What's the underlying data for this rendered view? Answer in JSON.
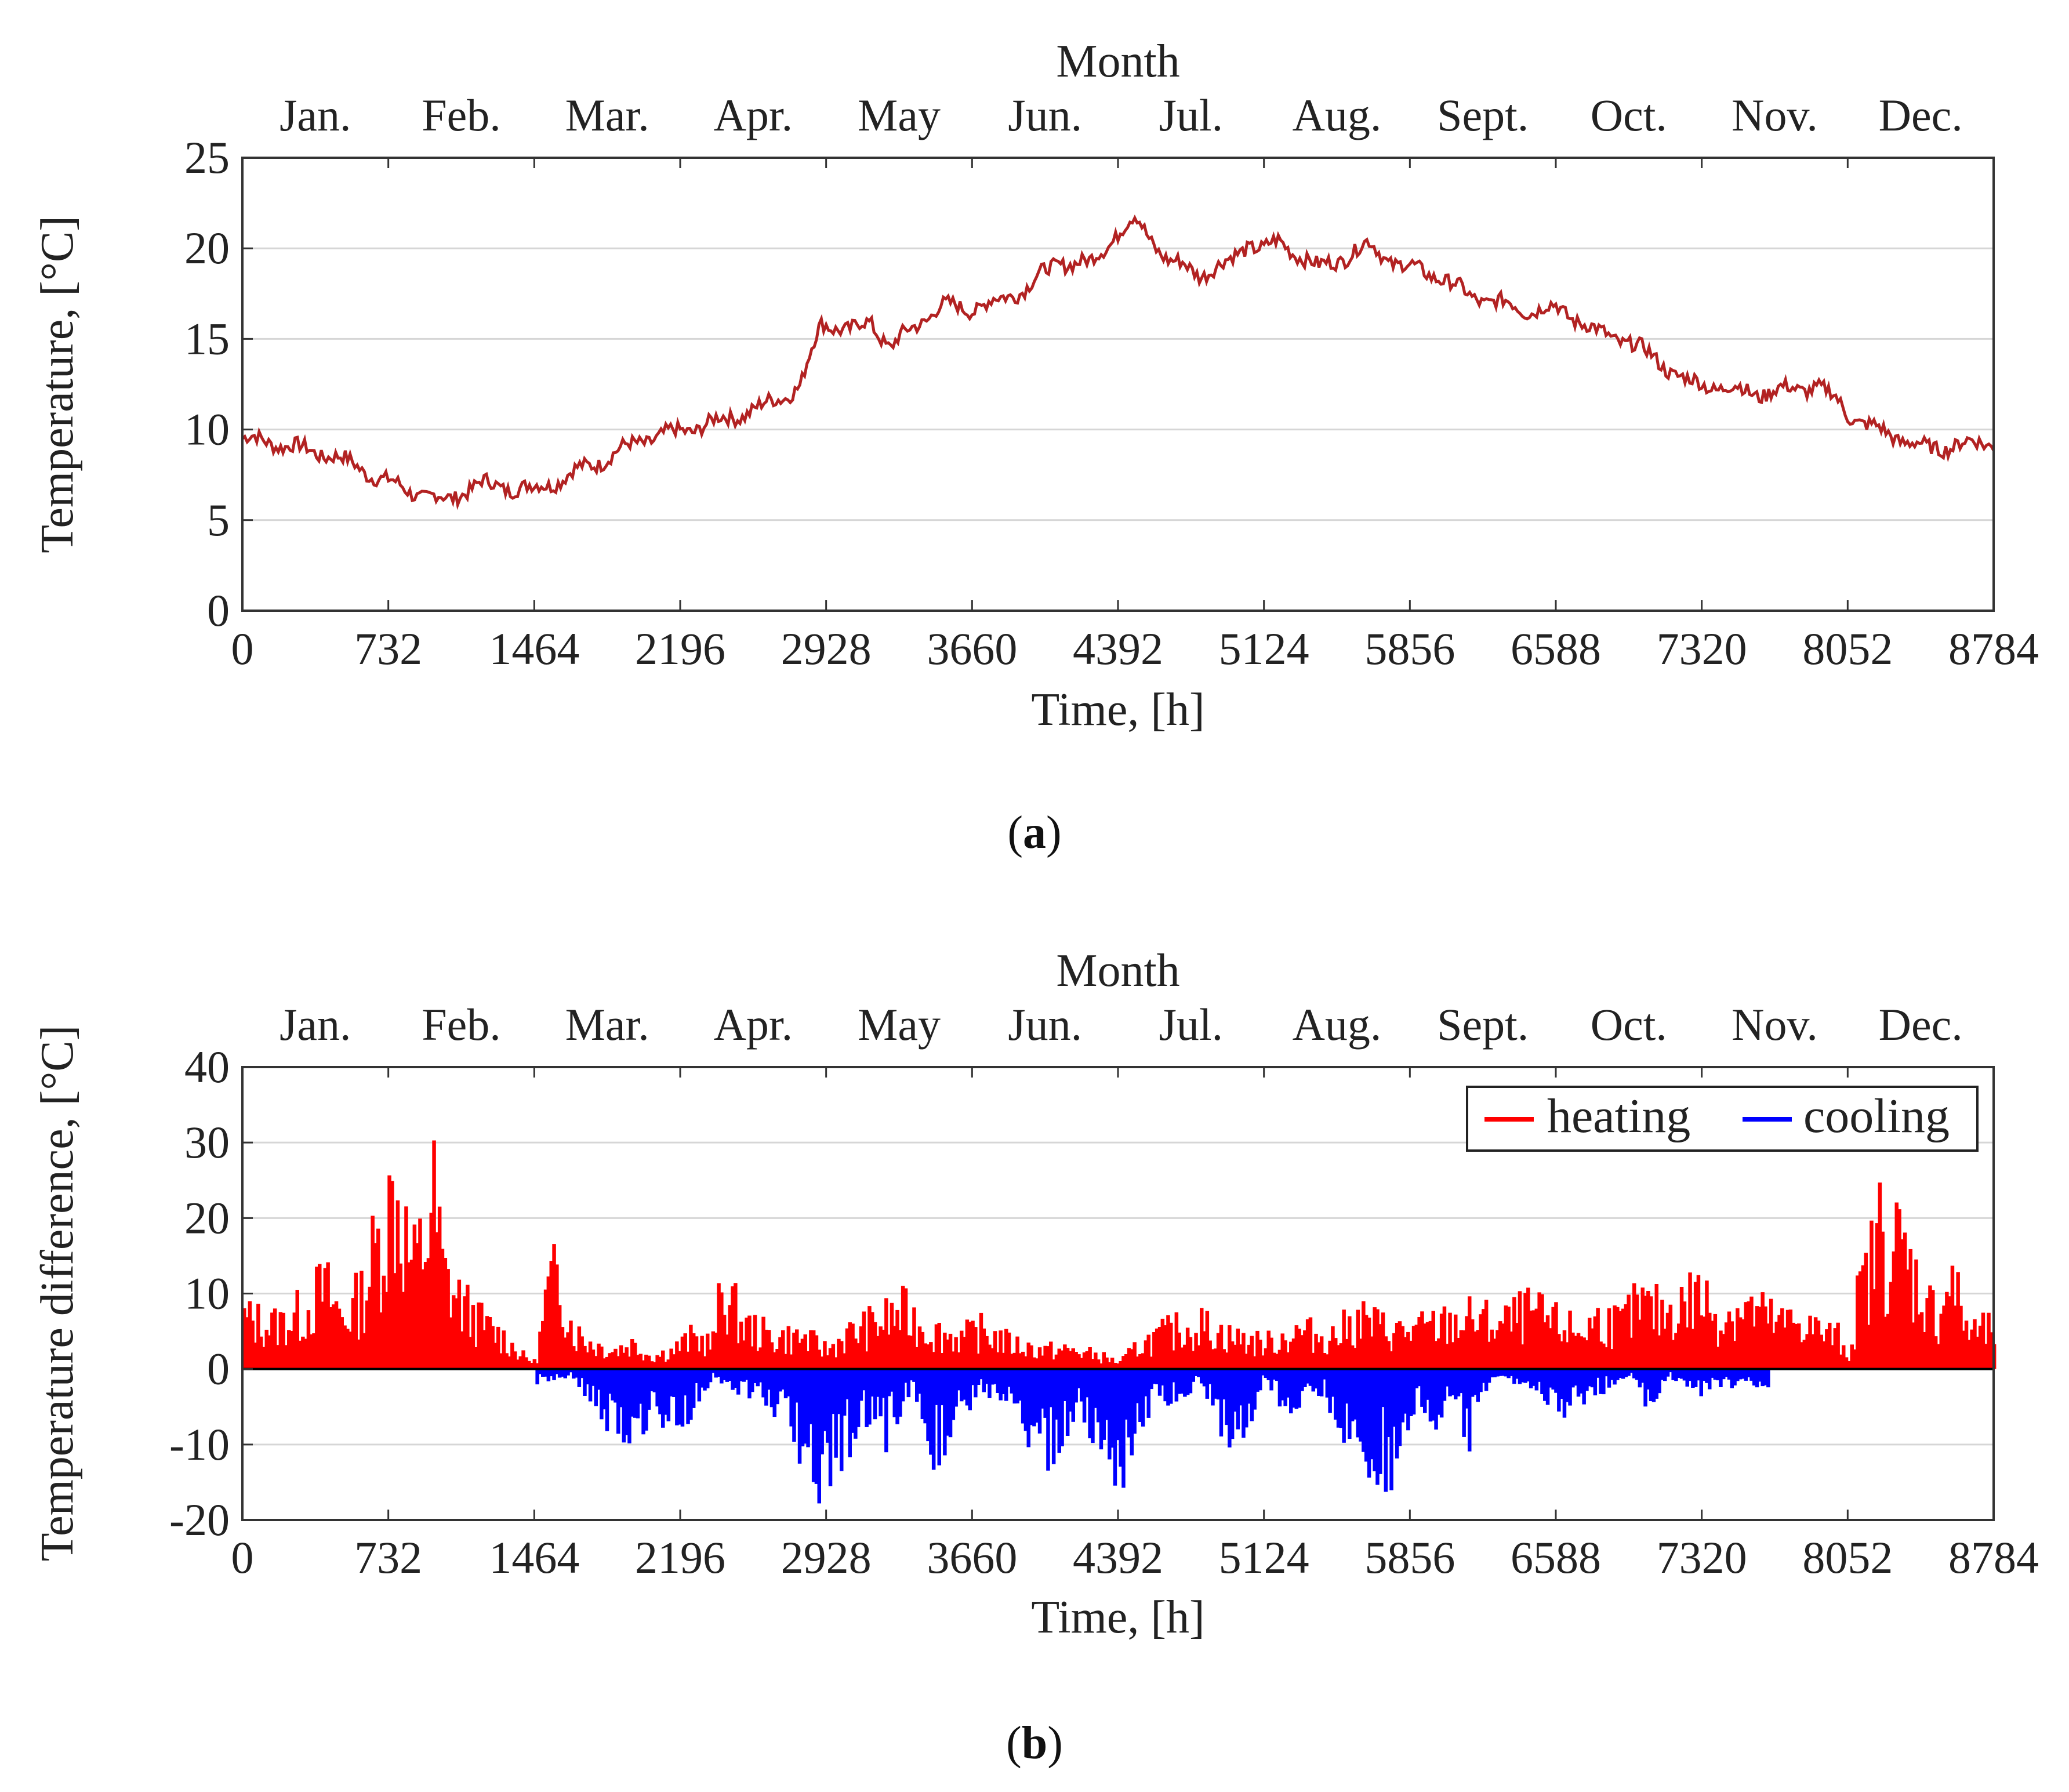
{
  "chart_data": [
    {
      "type": "line",
      "panel_label": "a",
      "top_axis_title": "Month",
      "months": [
        "Jan.",
        "Feb.",
        "Mar.",
        "Apr.",
        "May",
        "Jun.",
        "Jul.",
        "Aug.",
        "Sept.",
        "Oct.",
        "Nov.",
        "Dec."
      ],
      "xlabel": "Time, [h]",
      "ylabel": "Temperature, [°C]",
      "xlim": [
        0,
        8784
      ],
      "ylim": [
        0,
        25
      ],
      "xticks": [
        0,
        732,
        1464,
        2196,
        2928,
        3660,
        4392,
        5124,
        5856,
        6588,
        7320,
        8052,
        8784
      ],
      "yticks": [
        0,
        5,
        10,
        15,
        20,
        25
      ],
      "grid": true,
      "series": [
        {
          "name": "temperature",
          "color": "#b22222",
          "x": [
            0,
            150,
            300,
            450,
            600,
            750,
            900,
            1000,
            1050,
            1100,
            1200,
            1350,
            1464,
            1600,
            1800,
            2000,
            2196,
            2400,
            2600,
            2800,
            2900,
            2928,
            3050,
            3150,
            3250,
            3350,
            3500,
            3660,
            3800,
            3950,
            4100,
            4250,
            4392,
            4480,
            4550,
            4650,
            4800,
            4950,
            5050,
            5124,
            5200,
            5300,
            5400,
            5500,
            5650,
            5750,
            5856,
            6000,
            6150,
            6300,
            6450,
            6588,
            6700,
            6800,
            6950,
            7100,
            7250,
            7320,
            7450,
            7600,
            7750,
            7900,
            8000,
            8052,
            8150,
            8300,
            8450,
            8550,
            8650,
            8784
          ],
          "values": [
            9.5,
            9.3,
            8.9,
            8.6,
            7.8,
            7.0,
            6.4,
            6.1,
            6.2,
            6.6,
            7.0,
            6.8,
            6.7,
            7.3,
            8.3,
            9.4,
            9.9,
            10.5,
            11.2,
            12.4,
            15.8,
            15.9,
            15.4,
            16.0,
            14.5,
            15.5,
            16.8,
            16.7,
            17.1,
            18.0,
            19.3,
            19.1,
            20.9,
            21.6,
            20.6,
            19.3,
            18.6,
            19.2,
            20.3,
            20.0,
            20.3,
            19.7,
            18.9,
            19.4,
            20.2,
            19.4,
            18.9,
            18.5,
            17.4,
            17.0,
            16.6,
            16.7,
            16.1,
            15.3,
            14.9,
            13.8,
            12.6,
            12.5,
            12.3,
            12.0,
            12.2,
            12.4,
            11.6,
            10.9,
            10.2,
            9.6,
            8.9,
            9.1,
            9.2,
            9.3
          ]
        }
      ]
    },
    {
      "type": "bar",
      "panel_label": "b",
      "top_axis_title": "Month",
      "months": [
        "Jan.",
        "Feb.",
        "Mar.",
        "Apr.",
        "May",
        "Jun.",
        "Jul.",
        "Aug.",
        "Sept.",
        "Oct.",
        "Nov.",
        "Dec."
      ],
      "xlabel": "Time, [h]",
      "ylabel": "Temperature difference, [°C]",
      "xlim": [
        0,
        8784
      ],
      "ylim": [
        -20,
        40
      ],
      "xticks": [
        0,
        732,
        1464,
        2196,
        2928,
        3660,
        4392,
        5124,
        5856,
        6588,
        7320,
        8052,
        8784
      ],
      "yticks": [
        -20,
        -10,
        0,
        10,
        20,
        30,
        40
      ],
      "grid": true,
      "legend": {
        "position": "top-right",
        "entries": [
          "heating",
          "cooling"
        ]
      },
      "series": [
        {
          "name": "heating",
          "color": "#ff0000",
          "x": [
            0,
            150,
            300,
            400,
            500,
            600,
            650,
            700,
            760,
            800,
            850,
            900,
            950,
            1000,
            1100,
            1200,
            1300,
            1400,
            1464,
            1520,
            1580,
            1650,
            1750,
            1850,
            1950,
            2050,
            2150,
            2250,
            2350,
            2400,
            2500,
            2650,
            2800,
            2928,
            3000,
            3150,
            3300,
            3450,
            3600,
            3700,
            3850,
            4000,
            4150,
            4300,
            4392,
            4500,
            4650,
            4800,
            4950,
            5124,
            5300,
            5450,
            5600,
            5750,
            5856,
            6000,
            6150,
            6300,
            6450,
            6588,
            6700,
            6800,
            6900,
            7000,
            7100,
            7200,
            7300,
            7400,
            7500,
            7600,
            7700,
            7800,
            7900,
            8000,
            8052,
            8100,
            8150,
            8200,
            8250,
            8300,
            8400,
            8500,
            8550,
            8650,
            8784
          ],
          "values": [
            8,
            7,
            9,
            13,
            8,
            12,
            18,
            22,
            29,
            22,
            16,
            20,
            27,
            15,
            10,
            7,
            5,
            2,
            1,
            12,
            15,
            6,
            4,
            3,
            4,
            2,
            3,
            5,
            4,
            13,
            7,
            5,
            5,
            3,
            5,
            7,
            9,
            6,
            5,
            6,
            4,
            3,
            3,
            2,
            1,
            4,
            6,
            7,
            5,
            4,
            6,
            5,
            8,
            6,
            6,
            7,
            8,
            7,
            9,
            7,
            6,
            8,
            7,
            10,
            9,
            10,
            12,
            8,
            10,
            9,
            7,
            8,
            6,
            5,
            2,
            12,
            15,
            22,
            18,
            20,
            13,
            8,
            15,
            6,
            6
          ]
        },
        {
          "name": "cooling",
          "color": "#0000ff",
          "x": [
            1464,
            1650,
            1850,
            1900,
            1950,
            2050,
            2150,
            2250,
            2350,
            2500,
            2650,
            2800,
            2928,
            3000,
            3100,
            3200,
            3350,
            3450,
            3550,
            3700,
            3850,
            4000,
            4100,
            4200,
            4300,
            4392,
            4450,
            4550,
            4650,
            4800,
            4950,
            5050,
            5124,
            5250,
            5400,
            5550,
            5650,
            5750,
            5856,
            5950,
            6050,
            6150,
            6250,
            6450,
            6600,
            6700,
            6800,
            6950,
            7050,
            7100,
            7150,
            7300,
            7650
          ],
          "values": [
            -2,
            -1,
            -9,
            -12,
            -8,
            -7,
            -9,
            -6,
            -1,
            -3,
            -5,
            -11,
            -16,
            -12,
            -6,
            -11,
            -2,
            -12,
            -9,
            -3,
            -7,
            -13,
            -9,
            -5,
            -11,
            -13,
            -12,
            -5,
            -4,
            -2,
            -10,
            -6,
            -1,
            -7,
            -3,
            -10,
            -12,
            -15,
            -5,
            -8,
            -4,
            -9,
            -1,
            -2,
            -6,
            -4,
            -3,
            -1,
            -6,
            -3,
            -1,
            -3,
            -2
          ]
        }
      ]
    }
  ]
}
